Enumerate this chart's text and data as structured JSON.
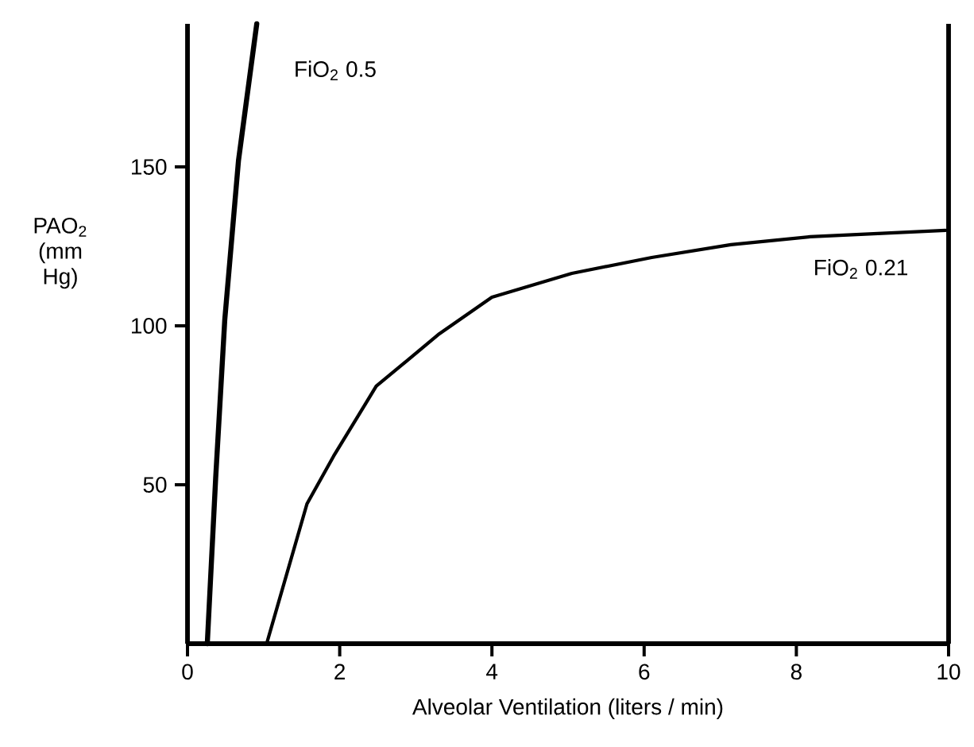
{
  "chart_data": {
    "type": "line",
    "xlabel": "Alveolar Ventilation (liters / min)",
    "ylabel": "PAO$_{2}$ (mm Hg)",
    "xlim": [
      0,
      10
    ],
    "ylim": [
      0,
      195
    ],
    "xticks": [
      0,
      2,
      4,
      6,
      8,
      10
    ],
    "yticks": [
      50,
      100,
      150
    ],
    "legend": false,
    "marker": "none",
    "line_style": "solid",
    "series": [
      {
        "name": "FiO$_{2}$ 0.5",
        "color": "#000000",
        "x": [
          0.26,
          0.37,
          0.49,
          0.67,
          0.91
        ],
        "values": [
          0,
          52,
          102,
          152,
          195
        ]
      },
      {
        "name": "FiO$_{2}$ 0.21",
        "color": "#000000",
        "x": [
          1.04,
          1.57,
          1.92,
          2.48,
          3.31,
          4.0,
          5.05,
          6.1,
          7.14,
          8.18,
          9.96
        ],
        "values": [
          0,
          44,
          59,
          81,
          97.5,
          109,
          116.5,
          121.5,
          125.5,
          128,
          130
        ]
      }
    ]
  }
}
